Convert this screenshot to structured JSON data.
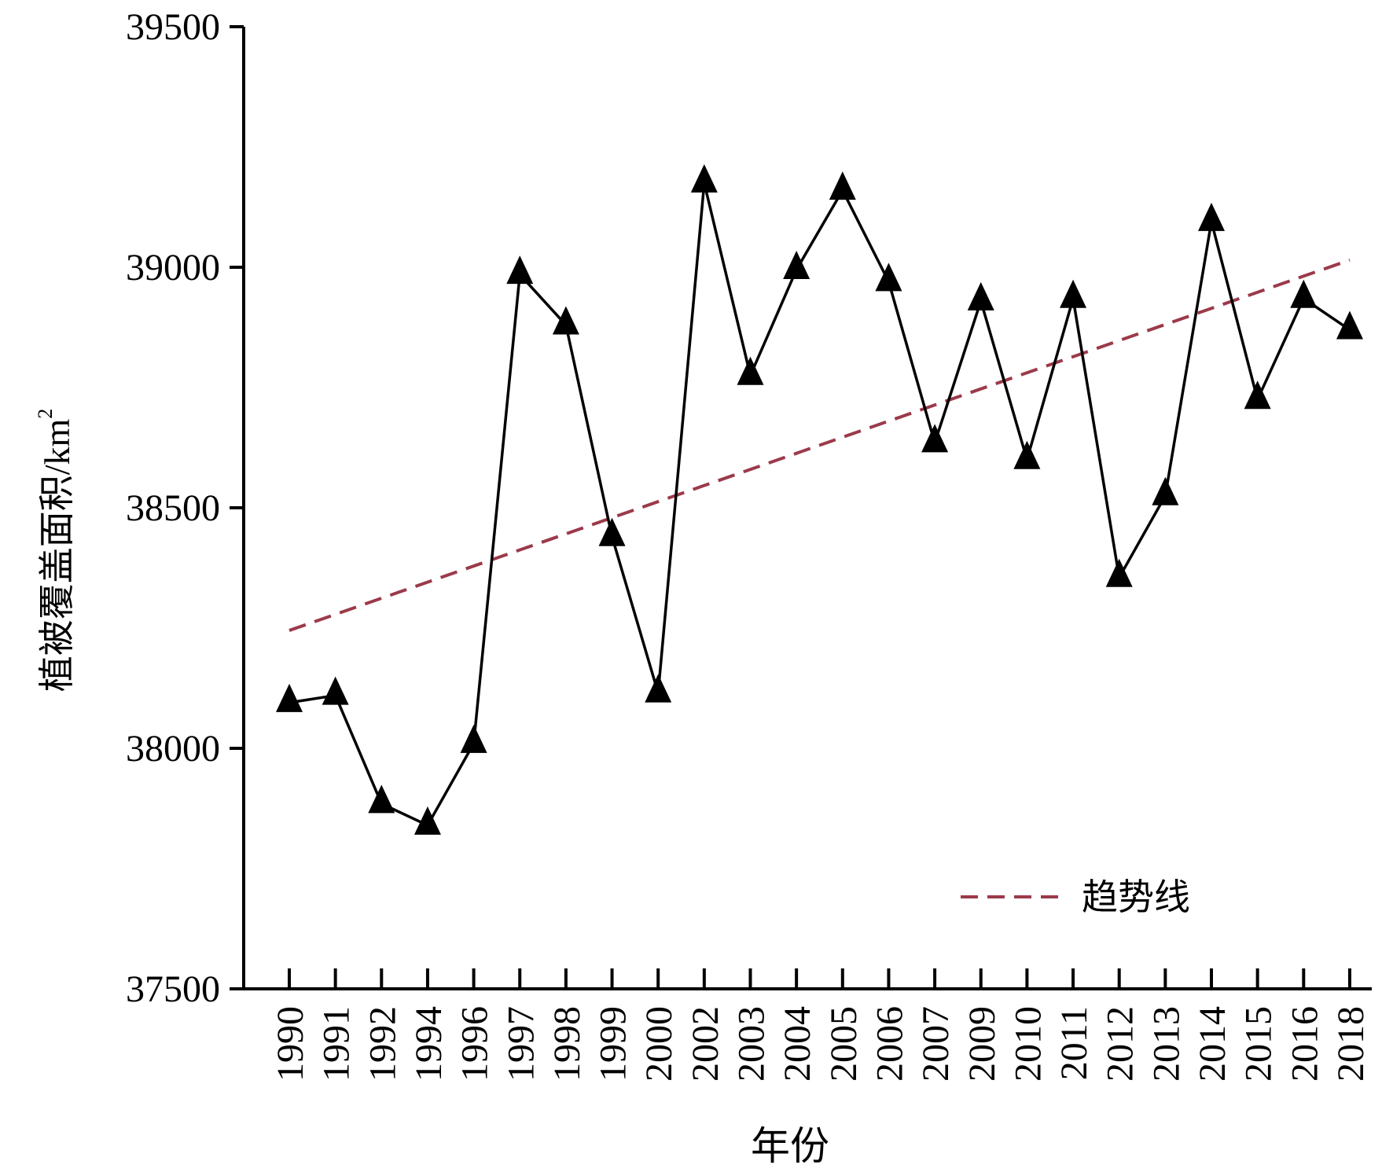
{
  "chart_data": {
    "type": "line",
    "title": "",
    "xlabel": "年份",
    "ylabel": "植被覆盖面积/km",
    "ylabel_superscript": "2",
    "ylim": [
      37500,
      39500
    ],
    "yticks": [
      37500,
      38000,
      38500,
      39000,
      39500
    ],
    "categories": [
      "1990",
      "1991",
      "1992",
      "1994",
      "1996",
      "1997",
      "1998",
      "1999",
      "2000",
      "2002",
      "2003",
      "2004",
      "2005",
      "2006",
      "2007",
      "2009",
      "2010",
      "2011",
      "2012",
      "2013",
      "2014",
      "2015",
      "2016",
      "2018"
    ],
    "series": [
      {
        "values": [
          38095,
          38110,
          37885,
          37840,
          38010,
          38985,
          38880,
          38440,
          38115,
          39175,
          38775,
          38995,
          39160,
          38970,
          38635,
          38930,
          38600,
          38935,
          38355,
          38525,
          39095,
          38725,
          38935,
          38870
        ],
        "color": "#000000",
        "marker": "triangle"
      }
    ],
    "trendline": {
      "name": "趋势线",
      "start": 38245,
      "end": 39015,
      "color": "#9b3a4a",
      "style": "dashed"
    },
    "grid": false,
    "legend_position": "bottom-right"
  }
}
